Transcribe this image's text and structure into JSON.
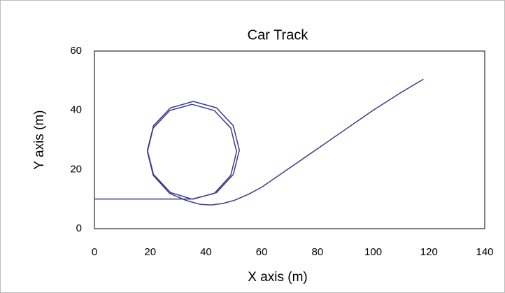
{
  "chart_data": {
    "type": "line",
    "title": "Car Track",
    "x_label": "X axis (m)",
    "y_label": "Y axis (m)",
    "x": [
      0,
      10,
      20,
      30,
      35.5,
      43.8,
      49.8,
      52,
      49.8,
      43.8,
      35.5,
      27.3,
      21.2,
      19,
      21.2,
      27.3,
      35,
      43,
      48.9,
      51,
      48.9,
      43,
      35,
      27,
      21.1,
      19,
      21.1,
      27,
      33,
      38,
      42,
      46,
      50,
      55,
      60,
      70,
      80,
      90,
      100,
      110,
      118
    ],
    "series": [
      {
        "color": "#3b3b8f",
        "values": [
          10,
          10,
          10,
          10,
          10,
          12.2,
          18.3,
          26.5,
          34.8,
          40.8,
          43,
          40.8,
          34.8,
          26.5,
          18.3,
          12.2,
          10,
          11.9,
          18,
          26,
          34,
          39.9,
          42,
          39.9,
          34,
          26,
          18,
          11.9,
          9.5,
          8.2,
          8,
          8.5,
          9.5,
          11.5,
          14,
          20.5,
          27,
          33.5,
          40,
          46,
          50.5
        ]
      }
    ],
    "xlim": [
      0,
      140
    ],
    "ylim": [
      0,
      60
    ],
    "xticks": [
      0,
      20,
      40,
      60,
      80,
      100,
      120,
      140
    ],
    "yticks": [
      0,
      20,
      40,
      60
    ],
    "grid": false
  }
}
